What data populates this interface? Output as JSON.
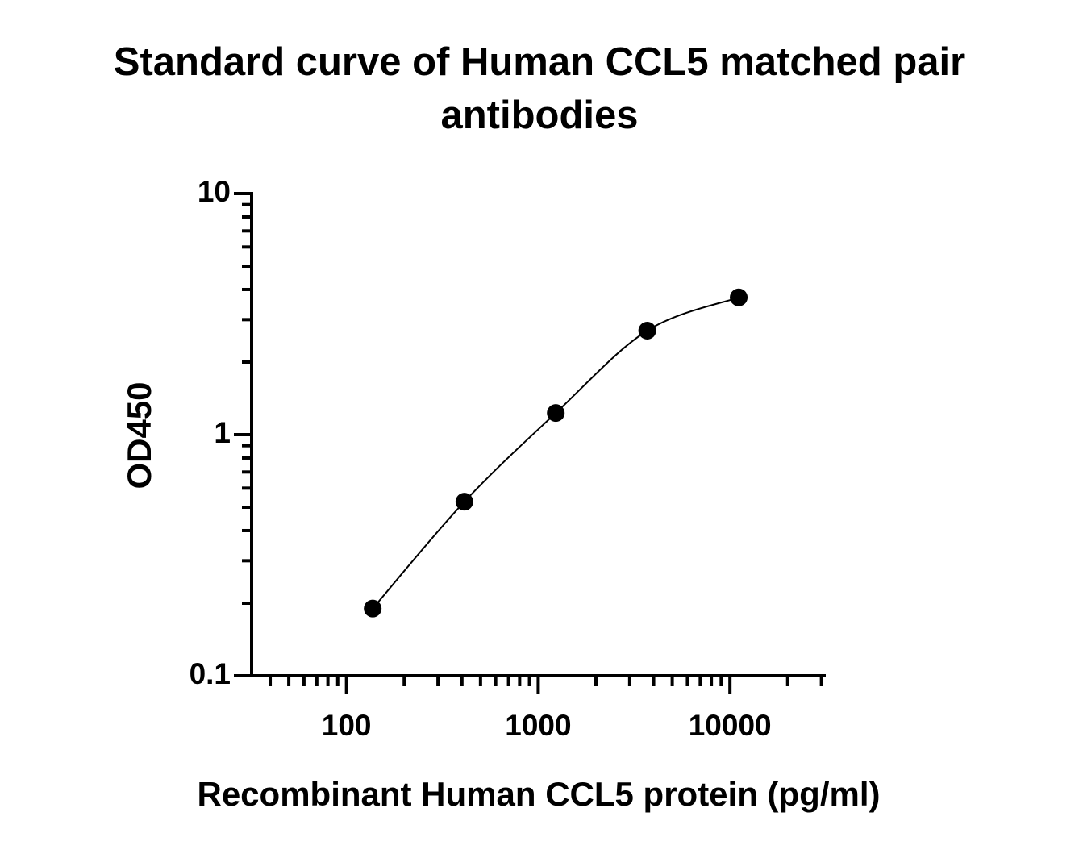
{
  "chart_data": {
    "type": "scatter",
    "title": "Standard curve of Human CCL5 matched pair antibodies",
    "x_label": "Recombinant Human CCL5 protein (pg/ml)",
    "y_label": "OD450",
    "x": [
      137,
      412,
      1235,
      3704,
      11111
    ],
    "series": [
      {
        "color": "#000000",
        "values": [
          0.19,
          0.527,
          1.23,
          2.7,
          3.71
        ],
        "fit_curve": true
      }
    ],
    "x_log": true,
    "y_log": true,
    "xlim": [
      32,
      31000
    ],
    "ylim": [
      0.1,
      10
    ],
    "xticks": [
      100,
      1000,
      10000
    ],
    "yticks": [
      0.1,
      1,
      10
    ],
    "xminorticks": [
      40,
      50,
      60,
      70,
      80,
      90,
      200,
      300,
      400,
      500,
      600,
      700,
      800,
      900,
      2000,
      3000,
      4000,
      5000,
      6000,
      7000,
      8000,
      9000,
      20000,
      30000
    ],
    "yminorticks": [
      0.2,
      0.3,
      0.4,
      0.5,
      0.6,
      0.7,
      0.8,
      0.9,
      2,
      3,
      4,
      5,
      6,
      7,
      8,
      9
    ],
    "grid": false
  }
}
